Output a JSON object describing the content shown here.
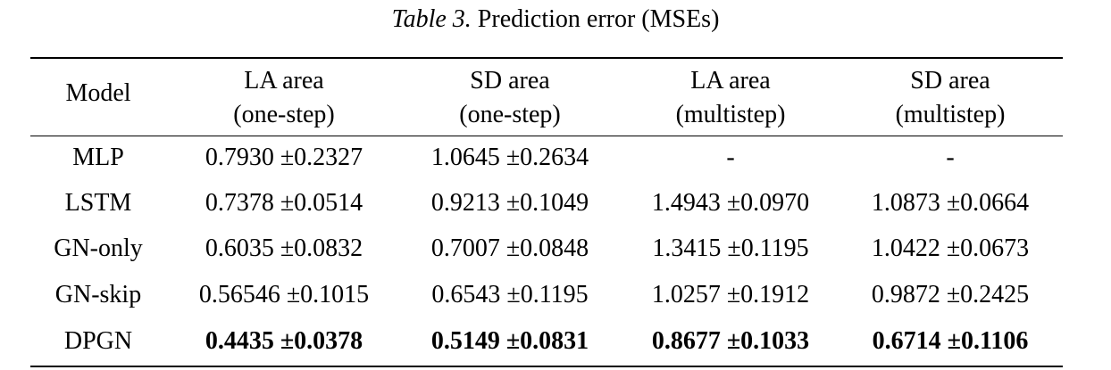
{
  "caption": {
    "label": "Table 3.",
    "title": "Prediction error (MSEs)"
  },
  "table": {
    "headers": [
      {
        "line1": "Model",
        "line2": ""
      },
      {
        "line1": "LA area",
        "line2": "(one-step)"
      },
      {
        "line1": "SD area",
        "line2": "(one-step)"
      },
      {
        "line1": "LA area",
        "line2": "(multistep)"
      },
      {
        "line1": "SD area",
        "line2": "(multistep)"
      }
    ],
    "rows": [
      {
        "model": "MLP",
        "cells": [
          "0.7930 ±0.2327",
          "1.0645 ±0.2634",
          "-",
          "-"
        ]
      },
      {
        "model": "LSTM",
        "cells": [
          "0.7378 ±0.0514",
          "0.9213 ±0.1049",
          "1.4943 ±0.0970",
          "1.0873 ±0.0664"
        ]
      },
      {
        "model": "GN-only",
        "cells": [
          "0.6035 ±0.0832",
          "0.7007 ±0.0848",
          "1.3415 ±0.1195",
          "1.0422 ±0.0673"
        ]
      },
      {
        "model": "GN-skip",
        "cells": [
          "0.56546 ±0.1015",
          "0.6543 ±0.1195",
          "1.0257 ±0.1912",
          "0.9872 ±0.2425"
        ]
      },
      {
        "model": "DPGN",
        "cells": [
          "0.4435 ±0.0378",
          "0.5149 ±0.0831",
          "0.8677 ±0.1033",
          "0.6714 ±0.1106"
        ]
      }
    ]
  }
}
